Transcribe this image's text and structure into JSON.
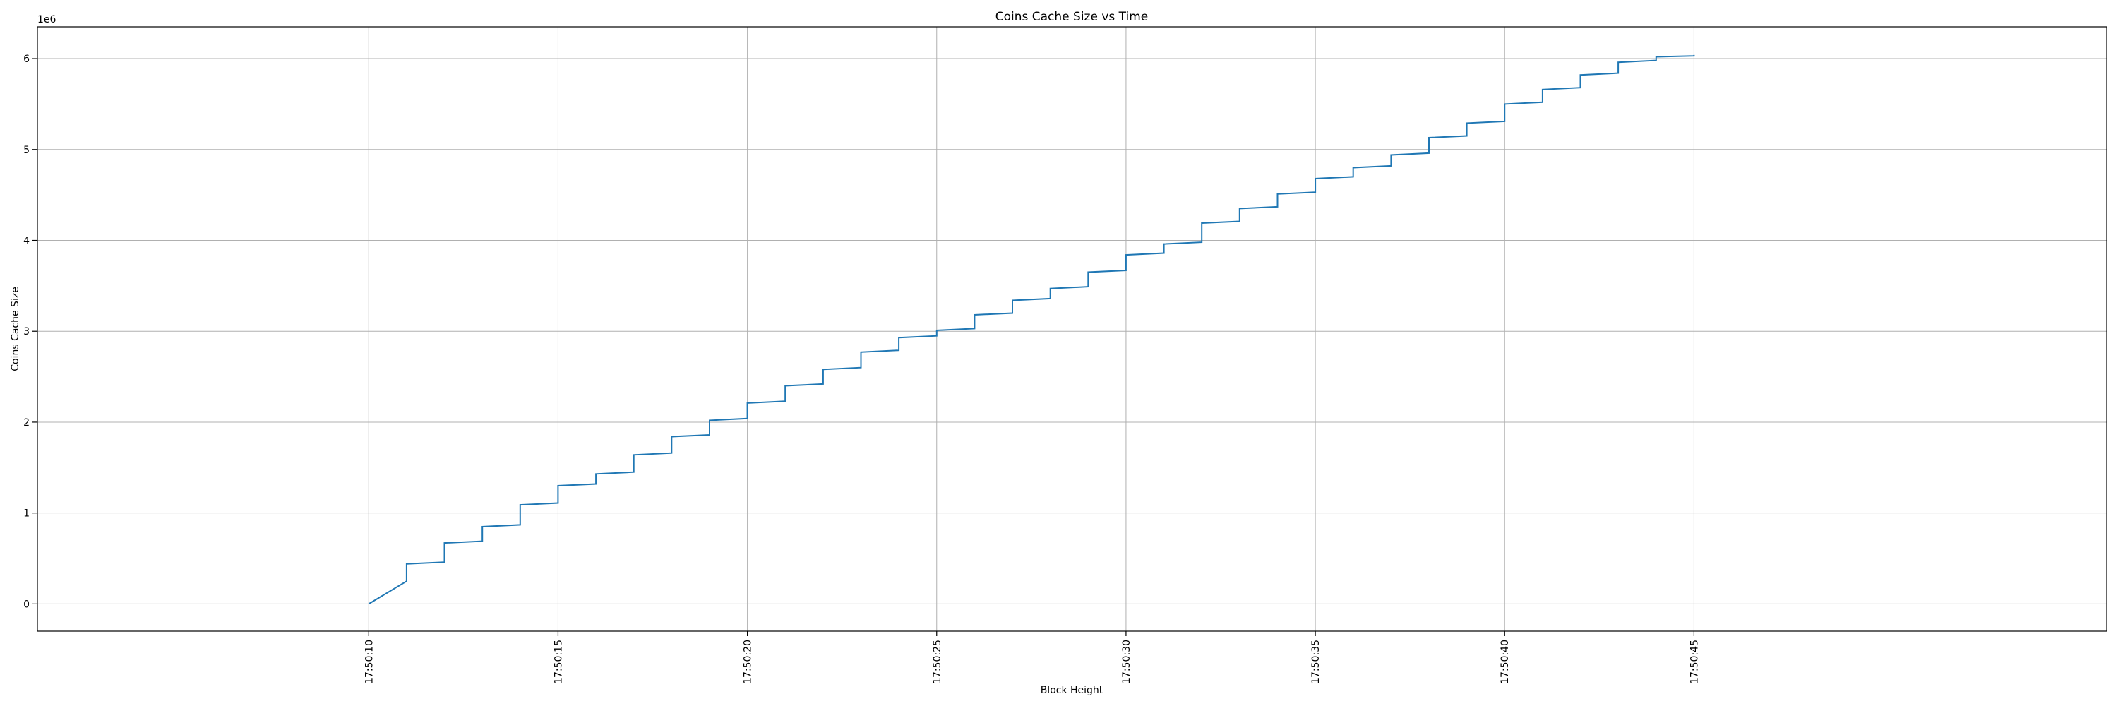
{
  "chart_data": {
    "type": "line",
    "title": "Coins Cache Size vs Time",
    "xlabel": "Block Height",
    "ylabel": "Coins Cache Size",
    "y_offset_text": "1e6",
    "x_tick_labels": [
      "17:50:10",
      "17:50:15",
      "17:50:20",
      "17:50:25",
      "17:50:30",
      "17:50:35",
      "17:50:40",
      "17:50:45"
    ],
    "y_ticks": [
      0,
      1,
      2,
      3,
      4,
      5,
      6
    ],
    "xlim_seconds_after_17_50_00": [
      1.25,
      55.9
    ],
    "ylim": [
      -0.3,
      6.35
    ],
    "grid": true,
    "colors": {
      "series": "#1f77b4",
      "grid": "#b0b0b0"
    },
    "series": [
      {
        "x": [
          "17:50:10",
          "17:50:11",
          "17:50:12",
          "17:50:13",
          "17:50:14",
          "17:50:15",
          "17:50:16",
          "17:50:17",
          "17:50:18",
          "17:50:19",
          "17:50:20",
          "17:50:21",
          "17:50:22",
          "17:50:23",
          "17:50:24",
          "17:50:25",
          "17:50:26",
          "17:50:27",
          "17:50:28",
          "17:50:29",
          "17:50:30",
          "17:50:31",
          "17:50:32",
          "17:50:33",
          "17:50:34",
          "17:50:35",
          "17:50:36",
          "17:50:37",
          "17:50:38",
          "17:50:39",
          "17:50:40",
          "17:50:41",
          "17:50:42",
          "17:50:43",
          "17:50:44",
          "17:50:45"
        ],
        "y_start": [
          0.0,
          0.44,
          0.67,
          0.85,
          1.09,
          1.3,
          1.43,
          1.64,
          1.84,
          2.02,
          2.21,
          2.4,
          2.58,
          2.77,
          2.93,
          3.01,
          3.18,
          3.34,
          3.47,
          3.65,
          3.84,
          3.96,
          4.19,
          4.35,
          4.51,
          4.68,
          4.8,
          4.94,
          5.13,
          5.29,
          5.5,
          5.66,
          5.82,
          5.96,
          6.02,
          6.04
        ],
        "y_end": [
          0.25,
          0.46,
          0.69,
          0.87,
          1.11,
          1.32,
          1.45,
          1.66,
          1.86,
          2.04,
          2.23,
          2.42,
          2.6,
          2.79,
          2.95,
          3.03,
          3.2,
          3.36,
          3.49,
          3.67,
          3.86,
          3.98,
          4.21,
          4.37,
          4.53,
          4.7,
          4.82,
          4.96,
          5.15,
          5.31,
          5.52,
          5.68,
          5.84,
          5.98,
          6.03,
          6.04
        ]
      }
    ]
  }
}
